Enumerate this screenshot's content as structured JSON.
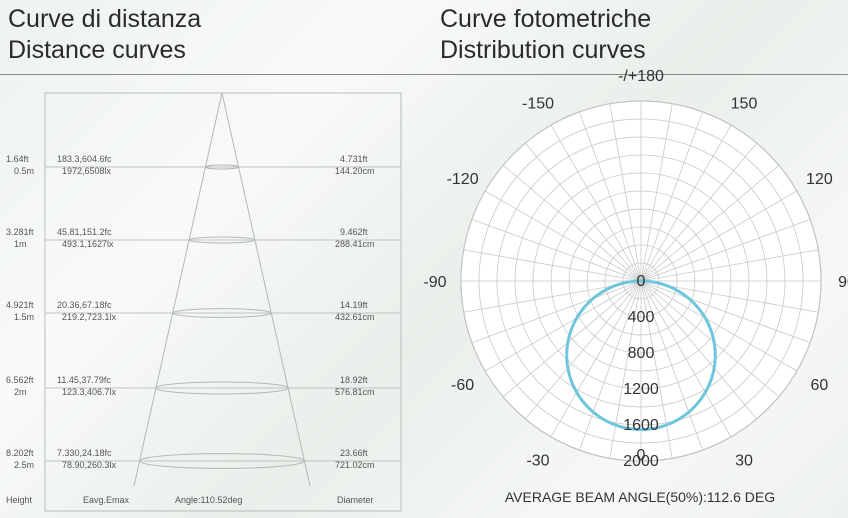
{
  "titles": {
    "left_it": "Curve di distanza",
    "left_en": "Distance curves",
    "right_it": "Curve fotometriche",
    "right_en": "Distribution curves"
  },
  "chart_data": [
    {
      "type": "table",
      "name_text": "Distance curves",
      "rows": [
        {
          "height_ft": "1.64ft",
          "height_m": "0.5m",
          "fc": "183.3,604.6fc",
          "lx": "1972,6508lx",
          "diam_ft": "4.731ft",
          "diam_cm": "144.20cm"
        },
        {
          "height_ft": "3.281ft",
          "height_m": "1m",
          "fc": "45.81,151.2fc",
          "lx": "493.1,1627lx",
          "diam_ft": "9.462ft",
          "diam_cm": "288.41cm"
        },
        {
          "height_ft": "4.921ft",
          "height_m": "1.5m",
          "fc": "20.36,67.18fc",
          "lx": "219.2,723.1lx",
          "diam_ft": "14.19ft",
          "diam_cm": "432.61cm"
        },
        {
          "height_ft": "6.562ft",
          "height_m": "2m",
          "fc": "11.45,37.79fc",
          "lx": "123.3,406.7lx",
          "diam_ft": "18.92ft",
          "diam_cm": "576.81cm"
        },
        {
          "height_ft": "8.202ft",
          "height_m": "2.5m",
          "fc": "7.330,24.18fc",
          "lx": "78.90,260.3lx",
          "diam_ft": "23.66ft",
          "diam_cm": "721.02cm"
        }
      ],
      "footer": {
        "height": "Height",
        "eavg": "Eavg.Emax",
        "angle": "Angle:110.52deg",
        "diameter": "Diameter"
      }
    },
    {
      "type": "polar",
      "angle_labels": [
        "-/+180",
        "-150",
        "150",
        "-120",
        "120",
        "-90",
        "90",
        "-60",
        "60",
        "-30",
        "30",
        "0"
      ],
      "radial_ticks": [
        0,
        400,
        800,
        1200,
        1600,
        2000
      ],
      "rlim": [
        0,
        2000
      ],
      "series_color": "#6ec6dc",
      "peak_intensity": 1650,
      "beam_angle_deg": 112.6,
      "caption": "AVERAGE BEAM ANGLE(50%):112.6 DEG"
    }
  ]
}
